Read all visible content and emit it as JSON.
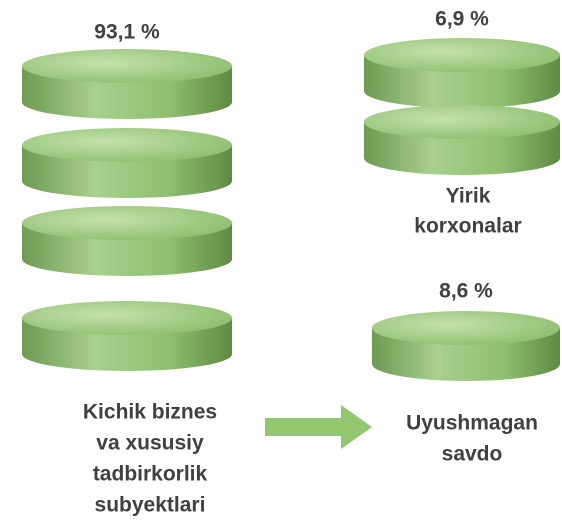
{
  "groups": [
    {
      "value_label": "93,1 %",
      "label_lines": [
        "Kichik biznes",
        "va xususiy",
        "tadbirkorlik",
        "subyektlari"
      ]
    },
    {
      "value_label": "6,9 %",
      "label_lines": [
        "Yirik",
        "korxonalar"
      ]
    },
    {
      "value_label": "8,6 %",
      "label_lines": [
        "Uyushmagan",
        "savdo"
      ]
    }
  ]
}
